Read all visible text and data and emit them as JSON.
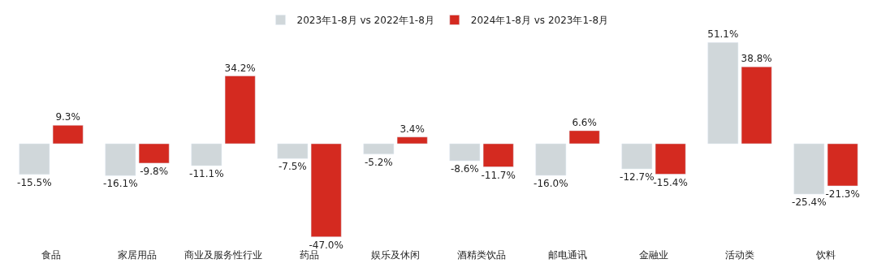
{
  "chart_data": {
    "type": "bar",
    "categories": [
      "食品",
      "家居用品",
      "商业及服务性行业",
      "药品",
      "娱乐及休闲",
      "酒精类饮品",
      "邮电通讯",
      "金融业",
      "活动类",
      "饮料"
    ],
    "series": [
      {
        "name": "2023年1-8月 vs 2022年1-8月",
        "color": "#d0d7da",
        "values": [
          -15.5,
          -16.1,
          -11.1,
          -7.5,
          -5.2,
          -8.6,
          -16.0,
          -12.7,
          51.1,
          -25.4
        ],
        "value_labels": [
          "-15.5%",
          "-16.1%",
          "-11.1%",
          "-7.5%",
          "-5.2%",
          "-8.6%",
          "-16.0%",
          "-12.7%",
          "51.1%",
          "-25.4%"
        ]
      },
      {
        "name": "2024年1-8月 vs 2023年1-8月",
        "color": "#d42a20",
        "values": [
          9.3,
          -9.8,
          34.2,
          -47.0,
          3.4,
          -11.7,
          6.6,
          -15.4,
          38.8,
          -21.3
        ],
        "value_labels": [
          "9.3%",
          "-9.8%",
          "34.2%",
          "-47.0%",
          "3.4%",
          "-11.7%",
          "6.6%",
          "-15.4%",
          "38.8%",
          "-21.3%"
        ]
      }
    ],
    "tick_labels": "x",
    "legend": "top"
  }
}
